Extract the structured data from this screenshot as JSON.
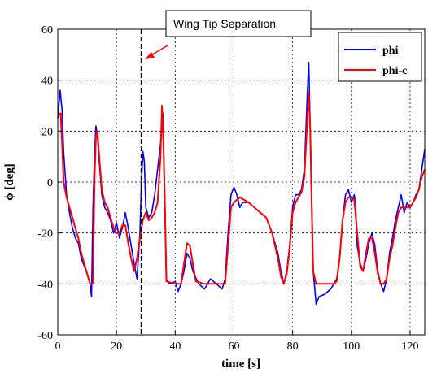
{
  "chart_data": {
    "type": "line",
    "xlabel": "time [s]",
    "ylabel": "ϕ [deg]",
    "xlim": [
      0,
      125
    ],
    "ylim": [
      -60,
      60
    ],
    "xticks": [
      0,
      20,
      40,
      60,
      80,
      100,
      120
    ],
    "yticks": [
      -60,
      -40,
      -20,
      0,
      20,
      40,
      60
    ],
    "grid": true,
    "legend_position": "top-right",
    "annotation": {
      "text": "Wing Tip Separation",
      "x": 28.5
    },
    "series": [
      {
        "name": "phi",
        "color": "#0000ff",
        "points": [
          [
            0,
            25
          ],
          [
            0.8,
            36
          ],
          [
            1.5,
            28
          ],
          [
            2,
            12
          ],
          [
            3,
            -5
          ],
          [
            4,
            -12
          ],
          [
            5,
            -18
          ],
          [
            6,
            -22
          ],
          [
            7,
            -24
          ],
          [
            8,
            -30
          ],
          [
            9,
            -33
          ],
          [
            10,
            -36
          ],
          [
            11,
            -40
          ],
          [
            11.5,
            -45
          ],
          [
            12,
            -10
          ],
          [
            12.5,
            10
          ],
          [
            13,
            22
          ],
          [
            13.5,
            18
          ],
          [
            14,
            10
          ],
          [
            15,
            -5
          ],
          [
            16,
            -10
          ],
          [
            17,
            -12
          ],
          [
            18,
            -15
          ],
          [
            19,
            -20
          ],
          [
            20,
            -16
          ],
          [
            21,
            -22
          ],
          [
            22,
            -18
          ],
          [
            23,
            -12
          ],
          [
            24,
            -18
          ],
          [
            25,
            -25
          ],
          [
            26,
            -32
          ],
          [
            27,
            -38
          ],
          [
            28,
            -20
          ],
          [
            28.5,
            0
          ],
          [
            29,
            12
          ],
          [
            29.5,
            8
          ],
          [
            30,
            -10
          ],
          [
            31,
            -14
          ],
          [
            32,
            -12
          ],
          [
            33,
            -5
          ],
          [
            34,
            5
          ],
          [
            35,
            15
          ],
          [
            35.8,
            27
          ],
          [
            36.5,
            -8
          ],
          [
            37,
            -38
          ],
          [
            38,
            -40
          ],
          [
            40,
            -39
          ],
          [
            41,
            -43
          ],
          [
            42,
            -40
          ],
          [
            43,
            -35
          ],
          [
            44,
            -28
          ],
          [
            45,
            -30
          ],
          [
            46,
            -35
          ],
          [
            48,
            -40
          ],
          [
            50,
            -42
          ],
          [
            52,
            -38
          ],
          [
            54,
            -40
          ],
          [
            56,
            -42
          ],
          [
            57,
            -38
          ],
          [
            58,
            -20
          ],
          [
            59,
            -5
          ],
          [
            60,
            -2
          ],
          [
            61,
            -5
          ],
          [
            62,
            -10
          ],
          [
            63,
            -8
          ],
          [
            65,
            -8
          ],
          [
            67,
            -10
          ],
          [
            69,
            -12
          ],
          [
            71,
            -14
          ],
          [
            73,
            -20
          ],
          [
            75,
            -28
          ],
          [
            76,
            -35
          ],
          [
            77,
            -40
          ],
          [
            78,
            -35
          ],
          [
            79,
            -25
          ],
          [
            80,
            -10
          ],
          [
            81,
            -5
          ],
          [
            82,
            -5
          ],
          [
            83,
            -3
          ],
          [
            84,
            5
          ],
          [
            85,
            35
          ],
          [
            85.5,
            47
          ],
          [
            86,
            20
          ],
          [
            86.5,
            -5
          ],
          [
            87,
            -35
          ],
          [
            88,
            -48
          ],
          [
            89,
            -45
          ],
          [
            91,
            -44
          ],
          [
            93,
            -42
          ],
          [
            94,
            -40
          ],
          [
            95,
            -38
          ],
          [
            96,
            -30
          ],
          [
            97,
            -15
          ],
          [
            98,
            -5
          ],
          [
            99,
            -3
          ],
          [
            100,
            -8
          ],
          [
            101,
            -5
          ],
          [
            101.5,
            -10
          ],
          [
            102,
            -25
          ],
          [
            103,
            -32
          ],
          [
            104,
            -35
          ],
          [
            105,
            -30
          ],
          [
            106,
            -24
          ],
          [
            107,
            -20
          ],
          [
            108,
            -25
          ],
          [
            109,
            -35
          ],
          [
            110,
            -40
          ],
          [
            111,
            -43
          ],
          [
            112,
            -38
          ],
          [
            113,
            -28
          ],
          [
            114,
            -22
          ],
          [
            115,
            -15
          ],
          [
            116,
            -10
          ],
          [
            117,
            -5
          ],
          [
            118,
            -12
          ],
          [
            119,
            -8
          ],
          [
            120,
            -10
          ],
          [
            121,
            -8
          ],
          [
            122,
            -5
          ],
          [
            123,
            -3
          ],
          [
            124,
            5
          ],
          [
            125,
            13
          ]
        ]
      },
      {
        "name": "phi-c",
        "color": "#ff0000",
        "points": [
          [
            0,
            26
          ],
          [
            1,
            27
          ],
          [
            1.5,
            14
          ],
          [
            2,
            0
          ],
          [
            3,
            -6
          ],
          [
            4,
            -10
          ],
          [
            5,
            -14
          ],
          [
            6,
            -18
          ],
          [
            7,
            -22
          ],
          [
            8,
            -28
          ],
          [
            9,
            -32
          ],
          [
            10,
            -36
          ],
          [
            11,
            -40
          ],
          [
            12,
            -40
          ],
          [
            12.5,
            0
          ],
          [
            13,
            18
          ],
          [
            13.5,
            20
          ],
          [
            14,
            12
          ],
          [
            15,
            -3
          ],
          [
            16,
            -8
          ],
          [
            17,
            -10
          ],
          [
            18,
            -14
          ],
          [
            19,
            -18
          ],
          [
            20,
            -20
          ],
          [
            21,
            -20
          ],
          [
            22,
            -17
          ],
          [
            23,
            -17
          ],
          [
            24,
            -24
          ],
          [
            25,
            -30
          ],
          [
            26,
            -35
          ],
          [
            27,
            -30
          ],
          [
            28,
            -22
          ],
          [
            29,
            -15
          ],
          [
            30,
            -12
          ],
          [
            31,
            -15
          ],
          [
            32,
            -14
          ],
          [
            33,
            -12
          ],
          [
            34,
            -8
          ],
          [
            35,
            10
          ],
          [
            35.5,
            30
          ],
          [
            36,
            15
          ],
          [
            36.5,
            -10
          ],
          [
            37,
            -39
          ],
          [
            40,
            -40
          ],
          [
            42,
            -40
          ],
          [
            43,
            -32
          ],
          [
            44,
            -24
          ],
          [
            45,
            -25
          ],
          [
            46,
            -32
          ],
          [
            47,
            -39
          ],
          [
            50,
            -40
          ],
          [
            54,
            -40
          ],
          [
            57,
            -40
          ],
          [
            58,
            -25
          ],
          [
            59,
            -10
          ],
          [
            60,
            -8
          ],
          [
            62,
            -6
          ],
          [
            65,
            -8
          ],
          [
            67,
            -10
          ],
          [
            69,
            -12
          ],
          [
            71,
            -14
          ],
          [
            73,
            -20
          ],
          [
            75,
            -30
          ],
          [
            76,
            -37
          ],
          [
            77,
            -40
          ],
          [
            78,
            -36
          ],
          [
            79,
            -26
          ],
          [
            80,
            -12
          ],
          [
            81,
            -8
          ],
          [
            82,
            -6
          ],
          [
            83,
            -4
          ],
          [
            84,
            2
          ],
          [
            85,
            25
          ],
          [
            85.5,
            35
          ],
          [
            86,
            20
          ],
          [
            86.5,
            -10
          ],
          [
            87,
            -35
          ],
          [
            88,
            -40
          ],
          [
            90,
            -40
          ],
          [
            92,
            -40
          ],
          [
            94,
            -40
          ],
          [
            95,
            -39
          ],
          [
            96,
            -30
          ],
          [
            97,
            -15
          ],
          [
            98,
            -8
          ],
          [
            99,
            -6
          ],
          [
            100,
            -6
          ],
          [
            101,
            -7
          ],
          [
            102,
            -20
          ],
          [
            103,
            -33
          ],
          [
            104,
            -35
          ],
          [
            105,
            -28
          ],
          [
            106,
            -22
          ],
          [
            107,
            -22
          ],
          [
            108,
            -28
          ],
          [
            109,
            -36
          ],
          [
            110,
            -40
          ],
          [
            111,
            -40
          ],
          [
            112,
            -38
          ],
          [
            113,
            -30
          ],
          [
            114,
            -25
          ],
          [
            115,
            -18
          ],
          [
            116,
            -12
          ],
          [
            117,
            -10
          ],
          [
            118,
            -10
          ],
          [
            119,
            -10
          ],
          [
            120,
            -10
          ],
          [
            121,
            -8
          ],
          [
            122,
            -6
          ],
          [
            123,
            -3
          ],
          [
            124,
            2
          ],
          [
            125,
            5
          ]
        ]
      }
    ]
  }
}
